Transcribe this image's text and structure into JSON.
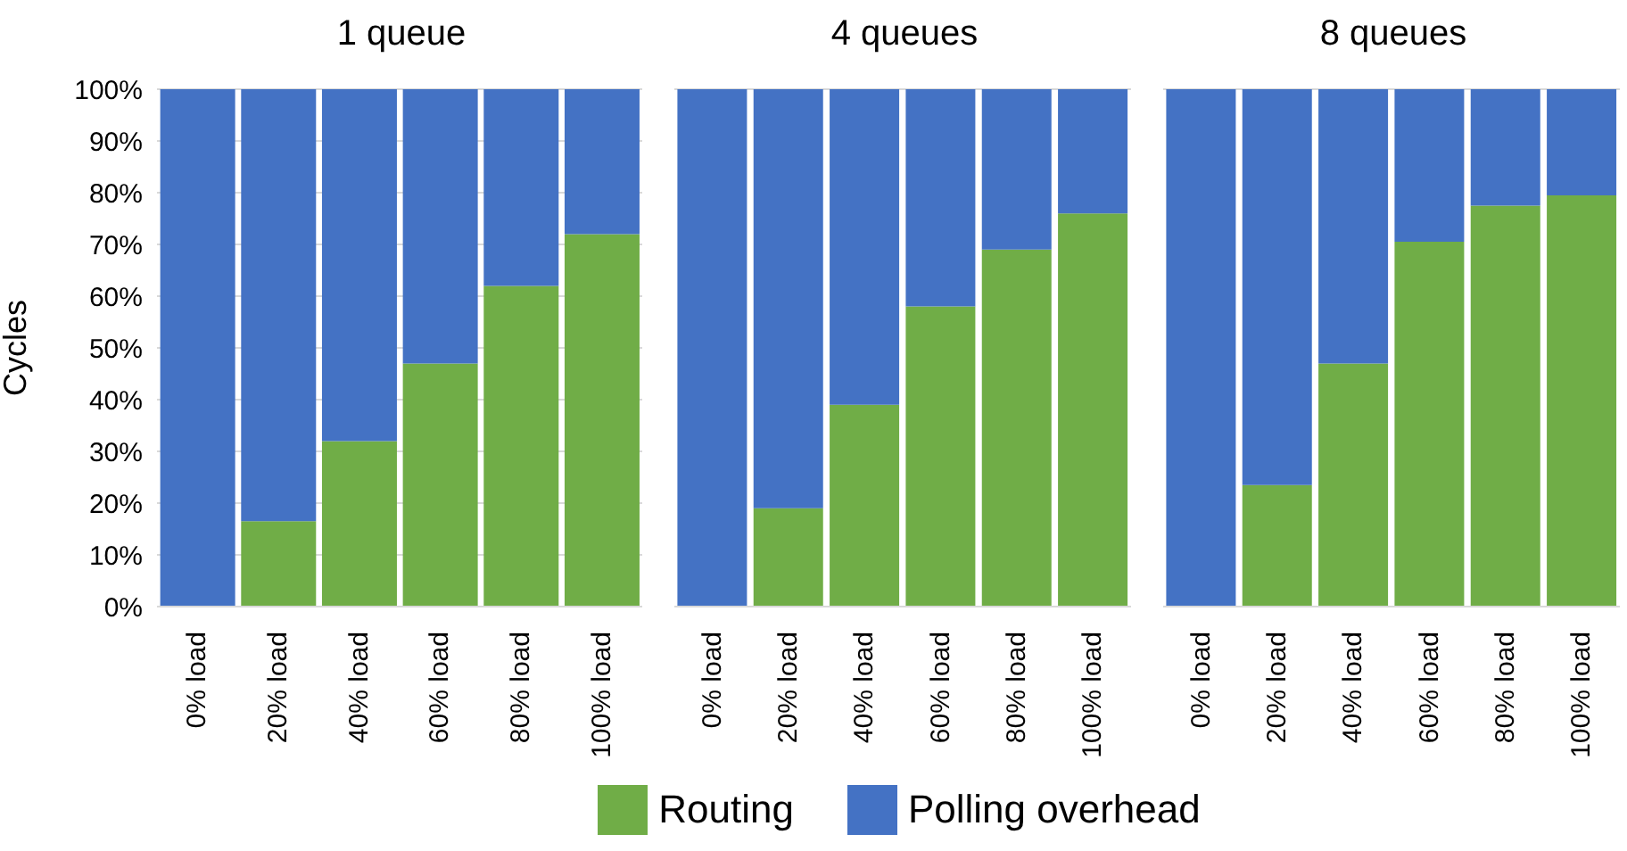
{
  "chart_data": [
    {
      "type": "bar",
      "title": "1 queue",
      "ylabel": "Cycles",
      "categories": [
        "0% load",
        "20% load",
        "40% load",
        "60% load",
        "80% load",
        "100% load"
      ],
      "stacked": true,
      "ylim": [
        0,
        100
      ],
      "yticks": [
        {
          "value": 0,
          "label": "0%"
        },
        {
          "value": 10,
          "label": "10%"
        },
        {
          "value": 20,
          "label": "20%"
        },
        {
          "value": 30,
          "label": "30%"
        },
        {
          "value": 40,
          "label": "40%"
        },
        {
          "value": 50,
          "label": "50%"
        },
        {
          "value": 60,
          "label": "60%"
        },
        {
          "value": 70,
          "label": "70%"
        },
        {
          "value": 80,
          "label": "80%"
        },
        {
          "value": 90,
          "label": "90%"
        },
        {
          "value": 100,
          "label": "100%"
        }
      ],
      "grid": "y",
      "series": [
        {
          "color": "#70ad47",
          "values": [
            0,
            16.5,
            32,
            47,
            62,
            72
          ]
        },
        {
          "color": "#4472c4",
          "values": [
            100,
            83.5,
            68,
            53,
            38,
            28
          ]
        }
      ]
    },
    {
      "type": "bar",
      "title": "4 queues",
      "categories": [
        "0% load",
        "20% load",
        "40% load",
        "60% load",
        "80% load",
        "100% load"
      ],
      "stacked": true,
      "ylim": [
        0,
        100
      ],
      "tick_labels": "x",
      "grid": "y",
      "legend": "bottom",
      "series": [
        {
          "name": "Routing",
          "color": "#70ad47",
          "values": [
            0,
            19,
            39,
            58,
            69,
            76
          ]
        },
        {
          "name": "Polling overhead",
          "color": "#4472c4",
          "values": [
            100,
            81,
            61,
            42,
            31,
            24
          ]
        }
      ]
    },
    {
      "type": "bar",
      "title": "8 queues",
      "categories": [
        "0% load",
        "20% load",
        "40% load",
        "60% load",
        "80% load",
        "100% load"
      ],
      "stacked": true,
      "ylim": [
        0,
        100
      ],
      "tick_labels": "x",
      "grid": "y",
      "series": [
        {
          "color": "#70ad47",
          "values": [
            0,
            23.5,
            47,
            70.5,
            77.5,
            79.5
          ]
        },
        {
          "color": "#4472c4",
          "values": [
            100,
            76.5,
            53,
            29.5,
            22.5,
            20.5
          ]
        }
      ]
    }
  ]
}
